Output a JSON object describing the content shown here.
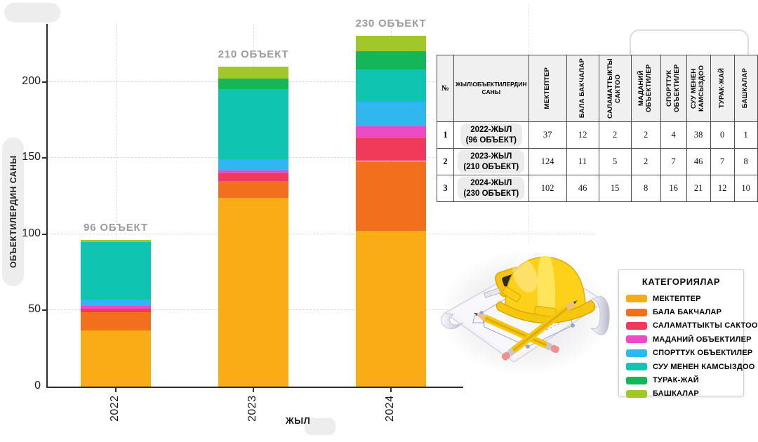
{
  "chart_data": {
    "type": "bar",
    "stacked": true,
    "categories": [
      "2022",
      "2023",
      "2024"
    ],
    "series": [
      {
        "name": "МЕКТЕПТЕР",
        "color": "#F9AC15",
        "values": [
          37,
          124,
          102
        ]
      },
      {
        "name": "БАЛА БАКЧАЛАР",
        "color": "#F2701D",
        "values": [
          12,
          11,
          46
        ]
      },
      {
        "name": "САЛАМАТТЫКТЫ САКТОО",
        "color": "#EF3A5B",
        "values": [
          2,
          5,
          15
        ]
      },
      {
        "name": "МАДАНИЙ ОБЪЕКТИЛЕР",
        "color": "#EE4AC5",
        "values": [
          2,
          2,
          8
        ]
      },
      {
        "name": "СПОРТТУК ОБЪЕКТИЛЕР",
        "color": "#30B7EE",
        "values": [
          4,
          7,
          16
        ]
      },
      {
        "name": "СУУ МЕНЕН КАМСЫЗДОО",
        "color": "#0FC5B1",
        "values": [
          38,
          46,
          21
        ]
      },
      {
        "name": "ТУРАК-ЖАЙ",
        "color": "#15B55A",
        "values": [
          0,
          7,
          12
        ]
      },
      {
        "name": "БАШКАЛАР",
        "color": "#A1C72B",
        "values": [
          1,
          8,
          10
        ]
      }
    ],
    "totals": [
      96,
      210,
      230
    ],
    "totals_labels": [
      "96 ОБЪЕКТ",
      "210 ОБЪЕКТ",
      "230 ОБЪЕКТ"
    ],
    "xlabel": "ЖЫЛ",
    "ylabel": "ОБЪЕКТИЛЕРДИН САНЫ",
    "yticks": [
      0,
      50,
      100,
      150,
      200
    ],
    "ylim": [
      0,
      238
    ],
    "grid": "dashed",
    "legend_position": "bottom-right"
  },
  "table": {
    "number_header": "№",
    "year_header": "ЖЫЛ\\ОБЪЕКТИЛЕРДИН САНЫ",
    "category_headers": [
      "МЕКТЕПТЕР",
      "БАЛА БАКЧАЛАР",
      "САЛАМАТТЫКТЫ САКТОО",
      "МАДАНИЙ ОБЪЕКТИЛЕР",
      "СПОРТТУК ОБЪЕКТИЛЕР",
      "СУУ МЕНЕН КАМСЫЗДОО",
      "ТУРАК-ЖАЙ",
      "БАШКАЛАР"
    ],
    "rows": [
      {
        "num": "1",
        "year": "2022-ЖЫЛ",
        "total": "(96 ОБЪЕКТ)",
        "values": [
          37,
          12,
          2,
          2,
          4,
          38,
          0,
          1
        ]
      },
      {
        "num": "2",
        "year": "2023-ЖЫЛ",
        "total": "(210 ОБЪЕКТ)",
        "values": [
          124,
          11,
          5,
          2,
          7,
          46,
          7,
          8
        ]
      },
      {
        "num": "3",
        "year": "2024-ЖЫЛ",
        "total": "(230 ОБЪЕКТ)",
        "values": [
          102,
          46,
          15,
          8,
          16,
          21,
          12,
          10
        ]
      }
    ]
  },
  "legend": {
    "title": "КАТЕГОРИЯЛАР",
    "items": [
      {
        "label": "МЕКТЕПТЕР",
        "color": "#F9AC15"
      },
      {
        "label": "БАЛА БАКЧАЛАР",
        "color": "#F2701D"
      },
      {
        "label": "САЛАМАТТЫКТЫ САКТОО",
        "color": "#EF3A5B"
      },
      {
        "label": "МАДАНИЙ ОБЪЕКТИЛЕР",
        "color": "#EE4AC5"
      },
      {
        "label": "СПОРТТУК ОБЪЕКТИЛЕР",
        "color": "#30B7EE"
      },
      {
        "label": "СУУ МЕНЕН КАМСЫЗДОО",
        "color": "#0FC5B1"
      },
      {
        "label": "ТУРАК-ЖАЙ",
        "color": "#15B55A"
      },
      {
        "label": "БАШКАЛАР",
        "color": "#A1C72B"
      }
    ]
  },
  "illustration": {
    "icon": "hardhat-blueprint-clipart"
  }
}
